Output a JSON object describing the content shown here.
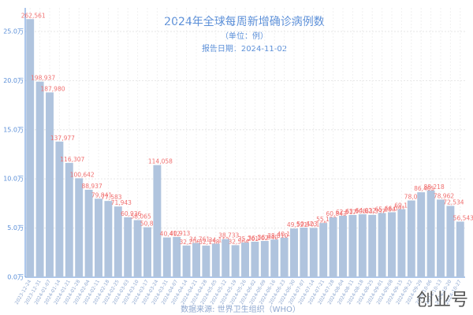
{
  "chart_data": {
    "type": "bar",
    "title": "2024年全球每周新增确诊病例数",
    "subtitle": "（单位：例）",
    "report_date": "报告日期：2024-11-02",
    "source": "数据来源: 世界卫生组织（WHO）",
    "watermark": "创业号",
    "color": "#b0c4de",
    "label_color": "#f07070",
    "grid": true,
    "categories": [
      "2023-12-24",
      "2023-12-31",
      "2024-01-07",
      "2024-01-14",
      "2024-01-21",
      "2024-01-28",
      "2024-02-04",
      "2024-02-11",
      "2024-02-18",
      "2024-02-25",
      "2024-03-03",
      "2024-03-10",
      "2024-03-17",
      "2024-03-24",
      "2024-03-31",
      "2024-04-07",
      "2024-04-14",
      "2024-04-21",
      "2024-04-28",
      "2024-05-05",
      "2024-05-12",
      "2024-05-19",
      "2024-05-26",
      "2024-06-02",
      "2024-06-09",
      "2024-06-16",
      "2024-06-23",
      "2024-06-30",
      "2024-07-07",
      "2024-07-14",
      "2024-07-21",
      "2024-07-28",
      "2024-08-04",
      "2024-08-11",
      "2024-08-18",
      "2024-08-25",
      "2024-09-01",
      "2024-09-08",
      "2024-09-15",
      "2024-09-22",
      "2024-09-29",
      "2024-10-06",
      "2024-10-13",
      "2024-10-20",
      "2024-10-27"
    ],
    "values": [
      262561,
      198937,
      187980,
      137977,
      116307,
      100642,
      88937,
      79841,
      77583,
      71943,
      60936,
      58065,
      50816,
      114058,
      40412,
      40913,
      32206,
      34761,
      32158,
      34112,
      38733,
      32564,
      35201,
      36102,
      36840,
      38310,
      40188,
      49521,
      50423,
      50168,
      55120,
      60843,
      62517,
      63308,
      64022,
      63397,
      65284,
      66091,
      69153,
      78045,
      86405,
      88218,
      78962,
      72534,
      56543
    ],
    "value_labels": [
      "262,561",
      "198,937",
      "187,980",
      "137,977",
      "116,307",
      "100,642",
      "88,937",
      "79,841",
      "77,583",
      "71,943",
      "60,936",
      "58,065",
      "50,816",
      "114,058",
      "40,412",
      "40,913",
      "32,206",
      "34,761",
      "32,158",
      "34,112",
      "38,733",
      "32,564",
      "35,201",
      "36,102",
      "36,840",
      "38,310",
      "40,188",
      "49,521",
      "50,423",
      "50,168",
      "55,120",
      "60,843",
      "62,517",
      "63,308",
      "64,022",
      "63,397",
      "65,284",
      "66,091",
      "69,153",
      "78,045",
      "86,405",
      "88,218",
      "78,962",
      "72,534",
      "56,543"
    ],
    "ylim": [
      0,
      274000
    ],
    "yticks": [
      {
        "value": 0,
        "label": "0.0万"
      },
      {
        "value": 50000,
        "label": "5.0万"
      },
      {
        "value": 100000,
        "label": "10.0万"
      },
      {
        "value": 150000,
        "label": "15.0万"
      },
      {
        "value": 200000,
        "label": "20.0万"
      },
      {
        "value": 250000,
        "label": "25.0万"
      }
    ]
  }
}
